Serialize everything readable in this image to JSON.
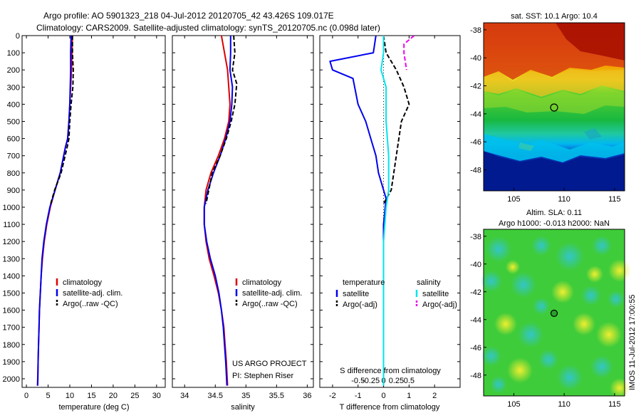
{
  "header": {
    "title_line1": "Argo profile: AO 5901323_218 04-Jul-2012 20120705_42 43.426S 109.017E",
    "title_line2": "Climatology: CARS2009. Satellite-adjusted climatology: synTS_20120705.nc (0.098d later)"
  },
  "colors": {
    "climatology": "#dd0000",
    "satellite": "#0000ee",
    "argo": "#000000",
    "satellite_salinity": "#00e5ee",
    "argo_salinity_adj": "#ee00ee"
  },
  "chart_data": [
    {
      "type": "line",
      "name": "temperature-profile",
      "xlabel": "temperature (deg C)",
      "ylabel": "",
      "xlim": [
        -1,
        32
      ],
      "ylim": [
        2050,
        0
      ],
      "xticks": [
        0,
        5,
        10,
        15,
        20,
        25,
        30
      ],
      "yticks": [
        0,
        100,
        200,
        300,
        400,
        500,
        600,
        700,
        800,
        900,
        1000,
        1100,
        1200,
        1300,
        1400,
        1500,
        1600,
        1700,
        1800,
        1900,
        2000
      ],
      "legend": [
        "climatology",
        "satellite-adj. clim.",
        "Argo(..raw -QC)"
      ],
      "legend_position": "bottom-center",
      "series": [
        {
          "name": "climatology",
          "style": "solid",
          "x": [
            10.6,
            10.5,
            10.4,
            10.2,
            10.0,
            9.8,
            9.5,
            9.0,
            7.8,
            6.6,
            5.5,
            4.7,
            4.1,
            3.7,
            3.4,
            3.2,
            3.0,
            2.9,
            2.8,
            2.7,
            2.6,
            2.55
          ],
          "y": [
            0,
            100,
            200,
            300,
            400,
            500,
            600,
            650,
            800,
            900,
            1000,
            1100,
            1200,
            1300,
            1400,
            1500,
            1600,
            1700,
            1800,
            1900,
            2000,
            2040
          ]
        },
        {
          "name": "satellite-adj. clim.",
          "style": "solid",
          "x": [
            10.3,
            10.2,
            10.2,
            10.1,
            10.0,
            9.8,
            9.5,
            9.0,
            7.8,
            6.6,
            5.4,
            4.6,
            4.0,
            3.6,
            3.4,
            3.2,
            3.0,
            2.9,
            2.8,
            2.7,
            2.65,
            2.6
          ],
          "y": [
            0,
            100,
            200,
            300,
            400,
            500,
            600,
            650,
            800,
            900,
            1000,
            1100,
            1200,
            1300,
            1400,
            1500,
            1600,
            1700,
            1800,
            1900,
            2000,
            2040
          ]
        },
        {
          "name": "Argo(..raw -QC)",
          "style": "dashed",
          "x": [
            10.6,
            10.6,
            10.8,
            10.7,
            10.3,
            10.0,
            9.8,
            9.4,
            8.0,
            6.5,
            5.6
          ],
          "y": [
            0,
            100,
            200,
            300,
            400,
            500,
            600,
            650,
            800,
            900,
            980
          ]
        }
      ]
    },
    {
      "type": "line",
      "name": "salinity-profile",
      "xlabel": "salinity",
      "ylabel": "",
      "xlim": [
        33.8,
        36.1
      ],
      "ylim": [
        2050,
        0
      ],
      "xticks": [
        34,
        34.5,
        35,
        35.5,
        36
      ],
      "legend": [
        "climatology",
        "satellite-adj. clim.",
        "Argo(..raw -QC)"
      ],
      "legend_position": "bottom-right",
      "annotation": [
        "US ARGO PROJECT",
        "PI: Stephen Riser"
      ],
      "series": [
        {
          "name": "climatology",
          "style": "solid",
          "x": [
            34.6,
            34.65,
            34.7,
            34.72,
            34.74,
            34.72,
            34.65,
            34.55,
            34.43,
            34.35,
            34.32,
            34.32,
            34.35,
            34.4,
            34.48,
            34.55,
            34.6,
            34.64,
            34.66,
            34.68,
            34.7
          ],
          "y": [
            0,
            100,
            200,
            300,
            400,
            500,
            600,
            700,
            800,
            900,
            1000,
            1100,
            1200,
            1300,
            1400,
            1500,
            1600,
            1700,
            1800,
            1900,
            2040
          ]
        },
        {
          "name": "satellite-adj. clim.",
          "style": "solid",
          "x": [
            34.75,
            34.75,
            34.74,
            34.78,
            34.77,
            34.74,
            34.67,
            34.58,
            34.47,
            34.38,
            34.32,
            34.32,
            34.36,
            34.42,
            34.5,
            34.56,
            34.6,
            34.63,
            34.65,
            34.67,
            34.69
          ],
          "y": [
            0,
            100,
            200,
            300,
            400,
            500,
            600,
            700,
            800,
            900,
            1000,
            1100,
            1200,
            1300,
            1400,
            1500,
            1600,
            1700,
            1800,
            1900,
            2040
          ]
        },
        {
          "name": "Argo(..raw -QC)",
          "style": "dashed",
          "x": [
            34.8,
            34.82,
            34.78,
            34.85,
            34.82,
            34.76,
            34.68,
            34.58,
            34.45,
            34.35
          ],
          "y": [
            0,
            100,
            200,
            280,
            400,
            500,
            600,
            700,
            800,
            980
          ]
        }
      ]
    },
    {
      "type": "line",
      "name": "difference-profile",
      "xlabel": "T difference from climatology",
      "xlabel2": "S difference from climatology",
      "ylabel": "",
      "xlim": [
        -2.5,
        3
      ],
      "ylim": [
        2050,
        0
      ],
      "xticks": [
        -2,
        -1,
        0,
        1,
        2
      ],
      "xticks2": [
        -0.5,
        -0.25,
        0,
        0.25,
        0.5
      ],
      "legend": [
        "temperature",
        "satellite",
        "Argo(-adj)",
        "salinity",
        "satellite",
        "Argo(-adj)"
      ],
      "legend_position": "bottom-center",
      "series": [
        {
          "name": "T satellite",
          "style": "solid",
          "x": [
            -0.3,
            -0.4,
            -2.1,
            -2.0,
            -1.2,
            -1.0,
            -0.7,
            -0.5,
            -0.3,
            -0.2,
            0.1,
            0.0,
            0.0,
            0.0,
            0.0,
            0.0
          ],
          "y": [
            0,
            100,
            150,
            200,
            250,
            400,
            500,
            600,
            700,
            800,
            950,
            1100,
            1200,
            1400,
            1800,
            2040
          ]
        },
        {
          "name": "T Argo(-adj)",
          "style": "dashed",
          "x": [
            0.0,
            0.1,
            0.5,
            0.8,
            1.0,
            0.7,
            0.6,
            0.4,
            0.3,
            0.0
          ],
          "y": [
            0,
            100,
            200,
            300,
            400,
            500,
            600,
            800,
            900,
            980
          ]
        },
        {
          "name": "S satellite",
          "style": "solid",
          "x": [
            0.0,
            0.0,
            -0.1,
            0.1,
            0.1,
            0.2,
            0.2,
            0.1,
            0.0,
            0.0,
            0.0
          ],
          "y": [
            0,
            100,
            200,
            300,
            500,
            700,
            900,
            1000,
            1200,
            1600,
            2040
          ]
        },
        {
          "name": "S Argo(-adj)",
          "style": "dashed",
          "x": [
            1.2,
            0.8,
            0.8,
            0.9
          ],
          "y": [
            0,
            50,
            100,
            200
          ]
        }
      ]
    },
    {
      "type": "heatmap",
      "name": "sst-map",
      "title": "sat. SST: 10.1  Argo: 10.4",
      "xlim": [
        102,
        116
      ],
      "ylim": [
        -49.5,
        -37.5
      ],
      "xticks": [
        105,
        110,
        115
      ],
      "yticks": [
        -38,
        -40,
        -42,
        -44,
        -46,
        -48
      ],
      "marker": {
        "lon": 109.017,
        "lat": -43.426
      }
    },
    {
      "type": "heatmap",
      "name": "sla-map",
      "title": "Altim. SLA: 0.11",
      "title2": "Argo h1000: -0.013  h2000: NaN",
      "xlim": [
        102,
        116
      ],
      "ylim": [
        -49.5,
        -37.5
      ],
      "xticks": [
        105,
        110,
        115
      ],
      "yticks": [
        -38,
        -40,
        -42,
        -44,
        -46,
        -48
      ],
      "marker": {
        "lon": 109.017,
        "lat": -43.426
      },
      "side_label": "IMOS 11-Jul-2012 17:00:55"
    }
  ]
}
